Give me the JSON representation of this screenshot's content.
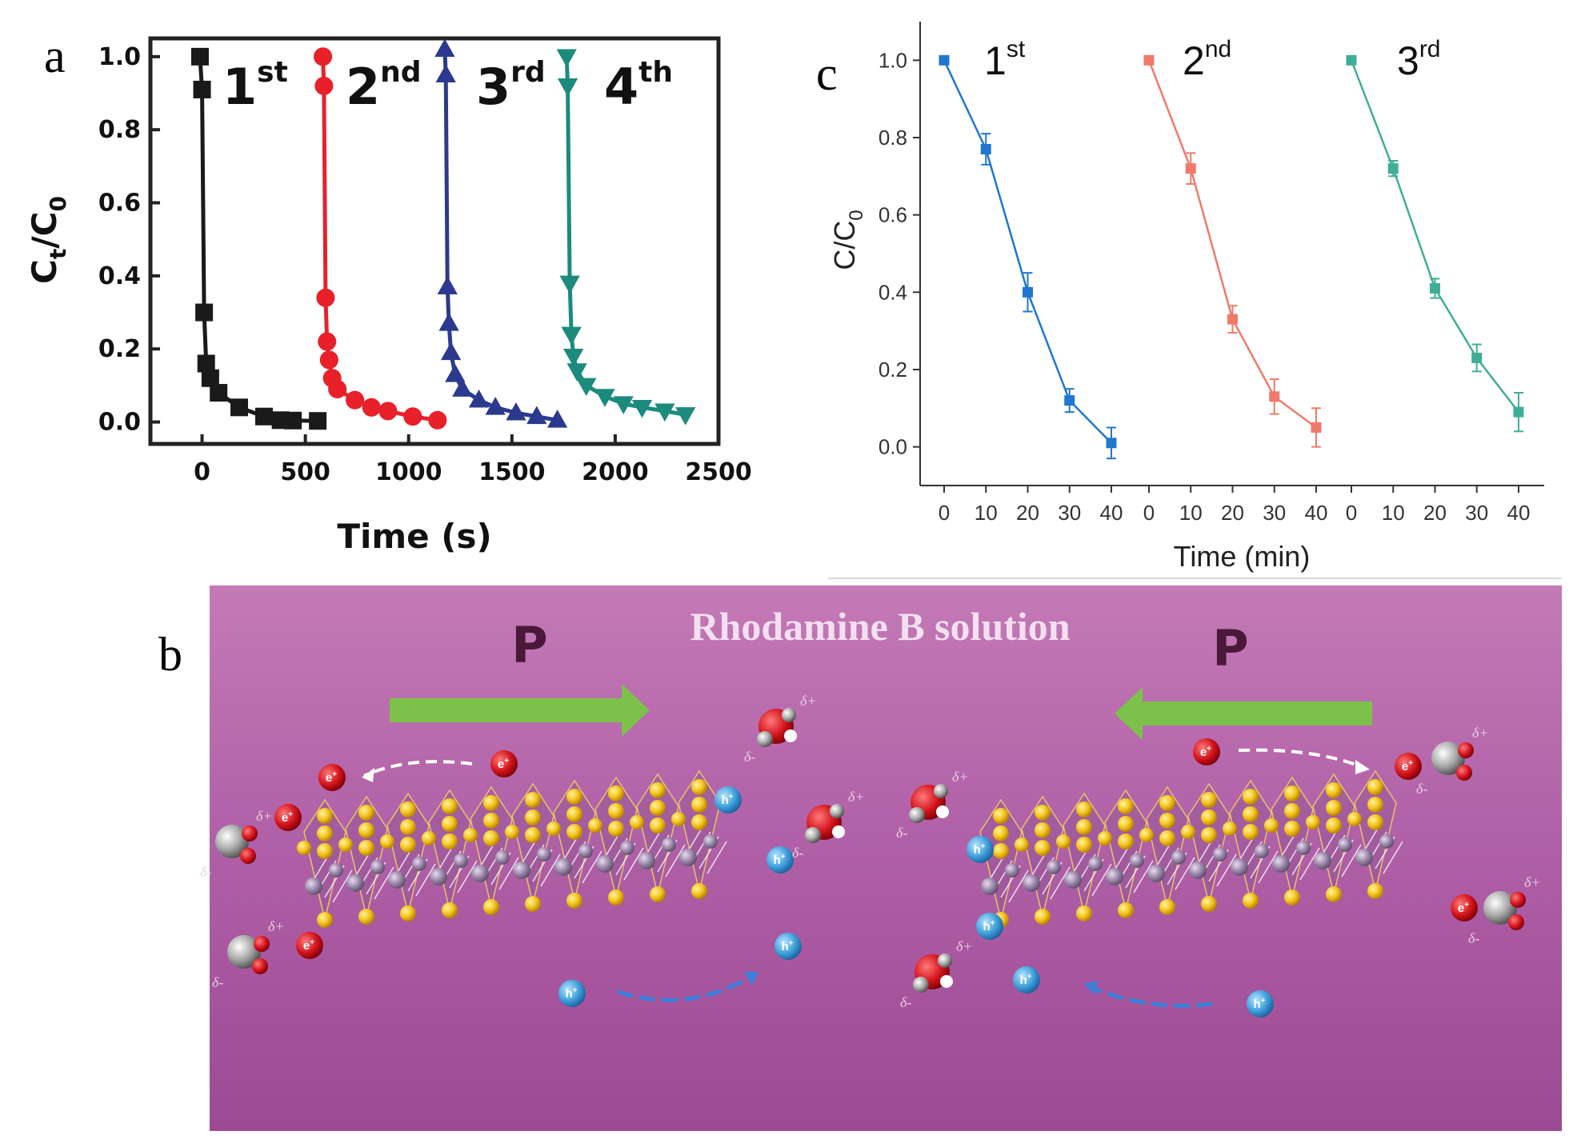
{
  "panel_labels": {
    "a": "a",
    "b": "b",
    "c": "c"
  },
  "chart_data": [
    {
      "panel": "a",
      "type": "line",
      "xlabel": "Time (s)",
      "ylabel_main": "C",
      "ylabel_sub1": "t",
      "ylabel_slash": "/C",
      "ylabel_sub2": "0",
      "xlim": [
        -250,
        2500
      ],
      "ylim": [
        -0.06,
        1.05
      ],
      "xticks": [
        "0",
        "500",
        "1000",
        "1500",
        "2000",
        "2500"
      ],
      "xtick_values": [
        0,
        500,
        1000,
        1500,
        2000,
        2500
      ],
      "yticks": [
        "0.0",
        "0.2",
        "0.4",
        "0.6",
        "0.8",
        "1.0"
      ],
      "ytick_values": [
        0.0,
        0.2,
        0.4,
        0.6,
        0.8,
        1.0
      ],
      "series": [
        {
          "label_num": "1",
          "label_sup": "st",
          "color": "#1a1a1a",
          "marker": "square",
          "x": [
            -10,
            0,
            10,
            20,
            40,
            80,
            180,
            300,
            380,
            440,
            560
          ],
          "y": [
            1.0,
            0.91,
            0.3,
            0.16,
            0.12,
            0.08,
            0.04,
            0.015,
            0.005,
            0.004,
            0.003
          ]
        },
        {
          "label_num": "2",
          "label_sup": "nd",
          "color": "#e8202a",
          "marker": "circle",
          "x": [
            585,
            590,
            598,
            605,
            615,
            630,
            655,
            740,
            820,
            900,
            1020,
            1140
          ],
          "y": [
            1.0,
            0.92,
            0.34,
            0.22,
            0.17,
            0.12,
            0.09,
            0.06,
            0.04,
            0.03,
            0.015,
            0.005
          ]
        },
        {
          "label_num": "3",
          "label_sup": "rd",
          "color": "#2b3a8f",
          "marker": "triangle-up",
          "x": [
            1175,
            1180,
            1188,
            1195,
            1205,
            1225,
            1260,
            1340,
            1420,
            1520,
            1620,
            1720
          ],
          "y": [
            1.02,
            0.95,
            0.37,
            0.27,
            0.19,
            0.13,
            0.09,
            0.06,
            0.04,
            0.025,
            0.015,
            0.005
          ]
        },
        {
          "label_num": "4",
          "label_sup": "th",
          "color": "#1c8a7c",
          "marker": "triangle-down",
          "x": [
            1765,
            1770,
            1780,
            1788,
            1798,
            1815,
            1860,
            1950,
            2040,
            2130,
            2240,
            2340
          ],
          "y": [
            1.0,
            0.92,
            0.38,
            0.24,
            0.18,
            0.14,
            0.1,
            0.07,
            0.05,
            0.04,
            0.03,
            0.02
          ]
        }
      ]
    },
    {
      "panel": "c",
      "type": "line",
      "xlabel": "Time (min)",
      "ylabel_main": "C/C",
      "ylabel_sub": "0",
      "ylim": [
        -0.1,
        1.1
      ],
      "yticks": [
        "0.0",
        "0.2",
        "0.4",
        "0.6",
        "0.8",
        "1.0"
      ],
      "ytick_values": [
        0.0,
        0.2,
        0.4,
        0.6,
        0.8,
        1.0
      ],
      "xticks": [
        "0",
        "10",
        "20",
        "30",
        "40",
        "0",
        "10",
        "20",
        "30",
        "40",
        "0",
        "10",
        "20",
        "30",
        "40"
      ],
      "series": [
        {
          "label_num": "1",
          "label_sup": "st",
          "color": "#1f77d0",
          "marker": "square",
          "x": [
            0,
            10,
            20,
            30,
            40
          ],
          "y": [
            1.0,
            0.77,
            0.4,
            0.12,
            0.01
          ],
          "err": [
            0.0,
            0.04,
            0.05,
            0.03,
            0.04
          ]
        },
        {
          "label_num": "2",
          "label_sup": "nd",
          "color": "#ef7a6a",
          "marker": "square",
          "x": [
            0,
            10,
            20,
            30,
            40
          ],
          "y": [
            1.0,
            0.72,
            0.33,
            0.13,
            0.05
          ],
          "err": [
            0.0,
            0.04,
            0.035,
            0.045,
            0.05
          ]
        },
        {
          "label_num": "3",
          "label_sup": "rd",
          "color": "#3fae96",
          "marker": "square",
          "x": [
            0,
            10,
            20,
            30,
            40
          ],
          "y": [
            1.0,
            0.72,
            0.41,
            0.23,
            0.09
          ],
          "err": [
            0.0,
            0.02,
            0.025,
            0.035,
            0.05
          ]
        }
      ]
    }
  ],
  "diagram_b": {
    "title": "Rhodamine B solution",
    "left_polarization": "P",
    "right_polarization": "P",
    "electron_label": "e",
    "hole_label": "h",
    "charge_sup": "+",
    "delta_plus": "δ+",
    "delta_minus": "δ-",
    "background_top": "#c87ab9",
    "background_bottom": "#a04f98",
    "arrow_color": "#7bc04a"
  }
}
